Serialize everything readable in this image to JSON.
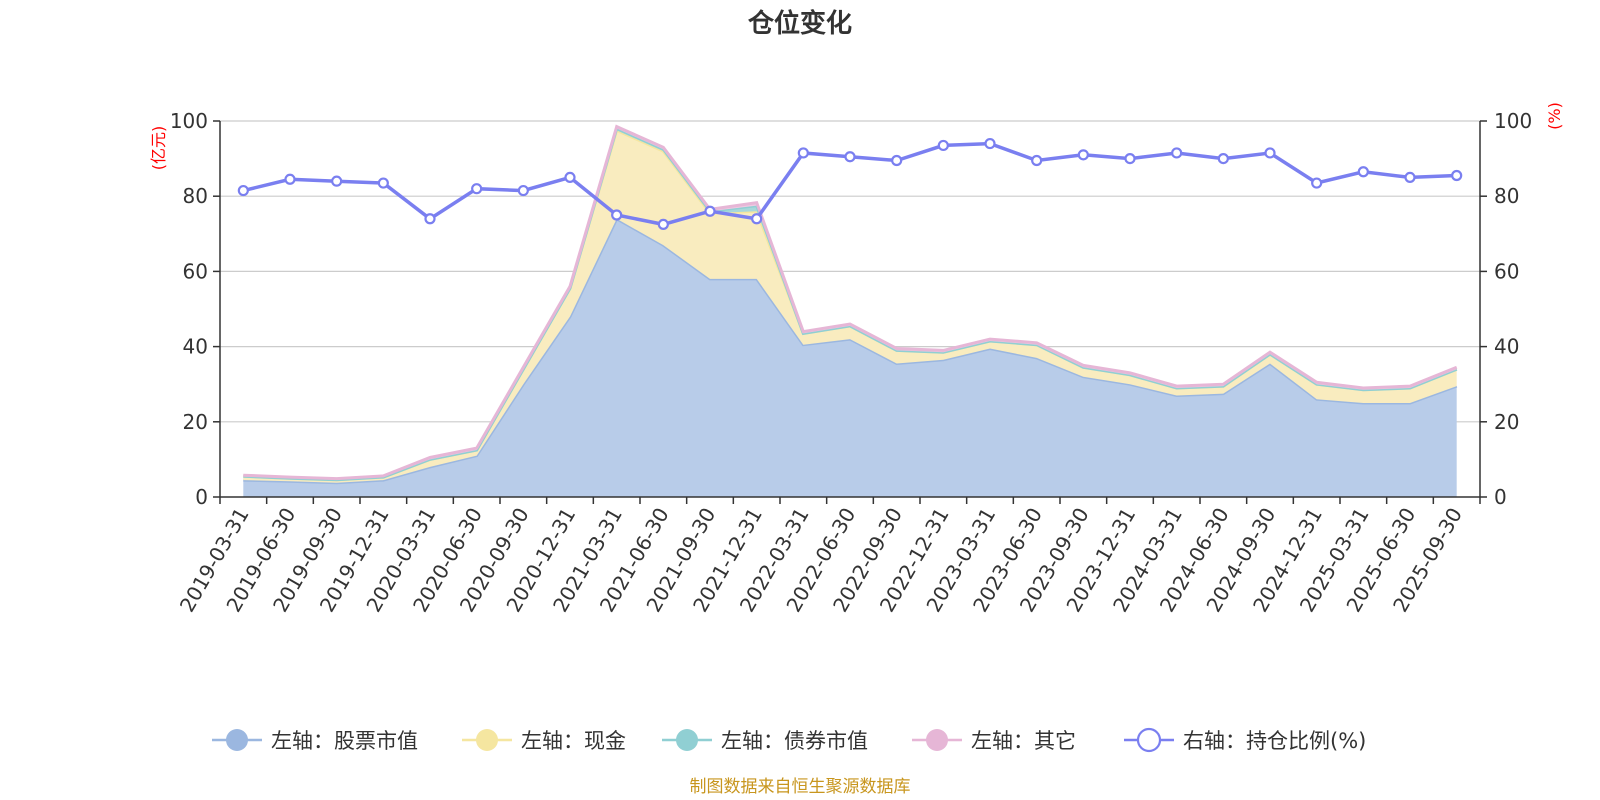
{
  "chart_data": {
    "type": "area",
    "title": "仓位变化",
    "left_axis_unit": "(亿元)",
    "right_axis_unit": "(%)",
    "left_ylim": [
      0,
      100
    ],
    "right_ylim": [
      0,
      100
    ],
    "left_ticks": [
      "0",
      "20",
      "40",
      "60",
      "80",
      "100"
    ],
    "right_ticks": [
      "0",
      "20",
      "40",
      "60",
      "80",
      "100"
    ],
    "categories": [
      "2019-03-31",
      "2019-06-30",
      "2019-09-30",
      "2019-12-31",
      "2020-03-31",
      "2020-06-30",
      "2020-09-30",
      "2020-12-31",
      "2021-03-31",
      "2021-06-30",
      "2021-09-30",
      "2021-12-31",
      "2022-03-31",
      "2022-06-30",
      "2022-09-30",
      "2022-12-31",
      "2023-03-31",
      "2023-06-30",
      "2023-09-30",
      "2023-12-31",
      "2024-03-31",
      "2024-06-30",
      "2024-09-30",
      "2024-12-31",
      "2025-03-31",
      "2025-06-30",
      "2025-09-30"
    ],
    "series": [
      {
        "name": "左轴：股票市值",
        "axis": "left",
        "kind": "stack",
        "color": "#9bb7e0",
        "fill": "#b8cce9",
        "values": [
          4.5,
          4.2,
          3.8,
          4.5,
          8.0,
          11.0,
          30.0,
          48.0,
          74.0,
          67.0,
          58.0,
          58.0,
          40.5,
          42.0,
          35.5,
          36.5,
          39.5,
          37.0,
          32.0,
          30.0,
          27.0,
          27.5,
          35.5,
          26.0,
          25.0,
          25.0,
          29.5
        ]
      },
      {
        "name": "左轴：现金",
        "axis": "left",
        "kind": "stack",
        "color": "#f5e6a0",
        "fill": "#f9ecbf",
        "values": [
          1.0,
          0.8,
          0.8,
          0.8,
          2.0,
          1.5,
          4.0,
          7.5,
          23.5,
          25.0,
          17.5,
          18.0,
          3.0,
          3.5,
          3.5,
          2.0,
          2.0,
          3.5,
          2.5,
          2.5,
          2.0,
          2.0,
          2.5,
          4.0,
          3.5,
          4.0,
          4.5
        ]
      },
      {
        "name": "左轴：债券市值",
        "axis": "left",
        "kind": "stack",
        "color": "#90cfd3",
        "fill": "#a8d8da",
        "values": [
          0,
          0,
          0,
          0,
          0,
          0,
          0,
          0,
          0.5,
          0.5,
          0.5,
          1.5,
          0,
          0,
          0,
          0,
          0,
          0,
          0,
          0,
          0,
          0,
          0,
          0,
          0,
          0,
          0
        ]
      },
      {
        "name": "左轴：其它",
        "axis": "left",
        "kind": "stack",
        "color": "#e6b6d6",
        "fill": "#efc9e3",
        "values": [
          0.3,
          0.3,
          0.3,
          0.3,
          0.5,
          0.5,
          0.5,
          0.5,
          0.5,
          0.5,
          0.5,
          0.8,
          0.5,
          0.5,
          0.5,
          0.5,
          0.5,
          0.5,
          0.5,
          0.5,
          0.5,
          0.5,
          0.5,
          0.5,
          0.5,
          0.5,
          0.5
        ]
      },
      {
        "name": "右轴：持仓比例(%)",
        "axis": "right",
        "kind": "line",
        "color": "#7a7ff0",
        "values": [
          81.5,
          84.5,
          84.0,
          83.5,
          74.0,
          82.0,
          81.5,
          85.0,
          75.0,
          72.5,
          76.0,
          74.0,
          91.5,
          90.5,
          89.5,
          93.5,
          94.0,
          89.5,
          91.0,
          90.0,
          91.5,
          90.0,
          91.5,
          83.5,
          86.5,
          85.0,
          85.5
        ]
      }
    ],
    "legend_position": "bottom",
    "source_note": "制图数据来自恒生聚源数据库"
  }
}
